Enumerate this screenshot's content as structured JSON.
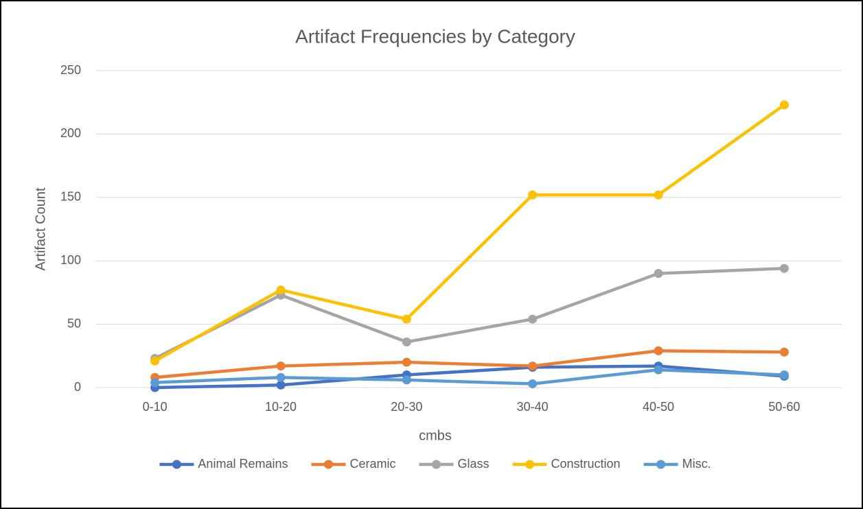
{
  "chart_data": {
    "type": "line",
    "title": "Artifact Frequencies by Category",
    "x_label": "cmbs",
    "y_label": "Artifact Count",
    "categories": [
      "0-10",
      "10-20",
      "20-30",
      "30-40",
      "40-50",
      "50-60"
    ],
    "series": [
      {
        "name": "Animal Remains",
        "color": "#4472c4",
        "values": [
          0,
          2,
          10,
          16,
          17,
          9
        ]
      },
      {
        "name": "Ceramic",
        "color": "#ed7d31",
        "values": [
          8,
          17,
          20,
          17,
          29,
          28
        ]
      },
      {
        "name": "Glass",
        "color": "#a5a5a5",
        "values": [
          23,
          73,
          36,
          54,
          90,
          94
        ]
      },
      {
        "name": "Construction",
        "color": "#ffc000",
        "values": [
          21,
          77,
          54,
          152,
          152,
          223
        ]
      },
      {
        "name": "Misc.",
        "color": "#5b9bd5",
        "values": [
          4,
          8,
          6,
          3,
          14,
          10
        ]
      }
    ],
    "ylim": [
      0,
      250
    ],
    "yticks": [
      0,
      50,
      100,
      150,
      200,
      250
    ],
    "grid": true,
    "legend": "bottom"
  }
}
